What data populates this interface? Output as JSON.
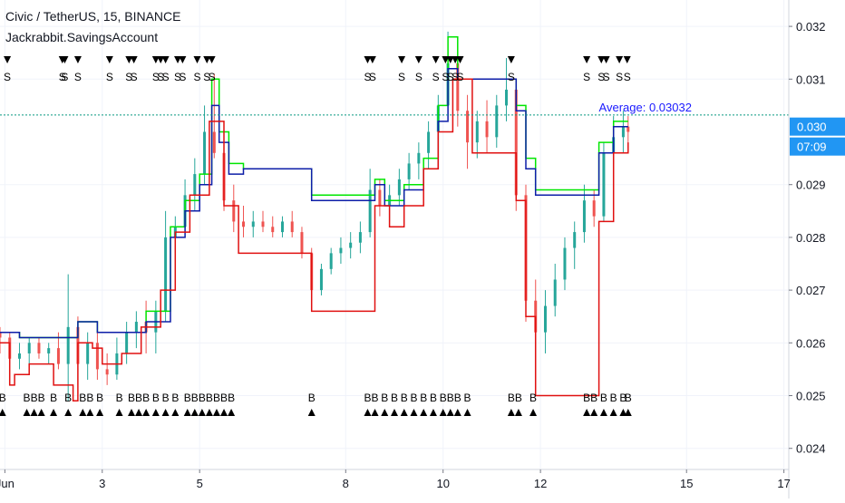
{
  "header": {
    "symbol_line": "Civic / TetherUS, 15, BINANCE",
    "indicator_line": "Jackrabbit.SavingsAccount"
  },
  "price_badge": {
    "value": "0.030",
    "countdown": "07:09",
    "color": "#2196f3"
  },
  "average_label": "Average: 0.03032",
  "colors": {
    "green": "#00e600",
    "blue": "#0d1ea8",
    "red": "#e01010",
    "candle_up": "#26a69a",
    "candle_down": "#ef5350",
    "average_line": "#089981",
    "average_text": "#1a1aff",
    "marker": "#000000"
  },
  "chart_data": {
    "type": "line",
    "title": "Civic / TetherUS, 15, BINANCE",
    "ylim": [
      0.0236,
      0.0325
    ],
    "xlim": [
      0.9,
      17.1
    ],
    "x_ticks": [
      {
        "v": 1,
        "label": "Jun"
      },
      {
        "v": 3,
        "label": "3"
      },
      {
        "v": 5,
        "label": "5"
      },
      {
        "v": 8,
        "label": "8"
      },
      {
        "v": 10,
        "label": "10"
      },
      {
        "v": 12,
        "label": "12"
      },
      {
        "v": 15,
        "label": "15"
      },
      {
        "v": 17,
        "label": "17"
      }
    ],
    "y_ticks": [
      {
        "v": 0.024,
        "label": "0.024"
      },
      {
        "v": 0.025,
        "label": "0.025"
      },
      {
        "v": 0.026,
        "label": "0.026"
      },
      {
        "v": 0.027,
        "label": "0.027"
      },
      {
        "v": 0.028,
        "label": "0.028"
      },
      {
        "v": 0.029,
        "label": "0.029"
      },
      {
        "v": 0.031,
        "label": "0.031"
      },
      {
        "v": 0.032,
        "label": "0.032"
      }
    ],
    "average_level": 0.03032,
    "series": [
      {
        "key": "green",
        "points": [
          [
            0.9,
            0.0262
          ],
          [
            1.2,
            0.0262
          ],
          [
            1.3,
            0.0261
          ],
          [
            2.2,
            0.0261
          ],
          [
            2.5,
            0.0264
          ],
          [
            2.9,
            0.0262
          ],
          [
            3.4,
            0.0262
          ],
          [
            3.9,
            0.0266
          ],
          [
            4.4,
            0.0282
          ],
          [
            4.7,
            0.0287
          ],
          [
            5.0,
            0.0292
          ],
          [
            5.25,
            0.031
          ],
          [
            5.4,
            0.03
          ],
          [
            5.6,
            0.0294
          ],
          [
            5.9,
            0.0293
          ],
          [
            6.9,
            0.0293
          ],
          [
            7.3,
            0.0288
          ],
          [
            8.4,
            0.0288
          ],
          [
            8.6,
            0.0291
          ],
          [
            8.8,
            0.0287
          ],
          [
            9.2,
            0.029
          ],
          [
            9.6,
            0.0295
          ],
          [
            9.9,
            0.0305
          ],
          [
            10.1,
            0.0318
          ],
          [
            10.3,
            0.031
          ],
          [
            11.2,
            0.031
          ],
          [
            11.5,
            0.0305
          ],
          [
            11.7,
            0.0295
          ],
          [
            11.9,
            0.0289
          ],
          [
            12.9,
            0.0289
          ],
          [
            13.2,
            0.0298
          ],
          [
            13.5,
            0.0302
          ],
          [
            13.8,
            0.0302
          ]
        ]
      },
      {
        "key": "blue",
        "points": [
          [
            0.9,
            0.0262
          ],
          [
            1.2,
            0.0262
          ],
          [
            1.3,
            0.0261
          ],
          [
            2.2,
            0.0261
          ],
          [
            2.5,
            0.0264
          ],
          [
            2.9,
            0.0262
          ],
          [
            3.4,
            0.0262
          ],
          [
            3.9,
            0.0264
          ],
          [
            4.4,
            0.028
          ],
          [
            4.7,
            0.0285
          ],
          [
            5.0,
            0.029
          ],
          [
            5.25,
            0.0305
          ],
          [
            5.4,
            0.0298
          ],
          [
            5.6,
            0.0292
          ],
          [
            5.9,
            0.0293
          ],
          [
            6.9,
            0.0293
          ],
          [
            7.3,
            0.0287
          ],
          [
            8.4,
            0.0287
          ],
          [
            8.6,
            0.029
          ],
          [
            8.8,
            0.0286
          ],
          [
            9.2,
            0.0289
          ],
          [
            9.6,
            0.0293
          ],
          [
            9.9,
            0.0302
          ],
          [
            10.1,
            0.0312
          ],
          [
            10.3,
            0.031
          ],
          [
            11.2,
            0.031
          ],
          [
            11.5,
            0.0304
          ],
          [
            11.7,
            0.0293
          ],
          [
            11.9,
            0.0288
          ],
          [
            12.9,
            0.0288
          ],
          [
            13.2,
            0.0296
          ],
          [
            13.5,
            0.0301
          ],
          [
            13.8,
            0.0301
          ]
        ]
      },
      {
        "key": "red",
        "points": [
          [
            0.9,
            0.026
          ],
          [
            1.1,
            0.0252
          ],
          [
            1.2,
            0.0254
          ],
          [
            1.5,
            0.0256
          ],
          [
            2.0,
            0.0252
          ],
          [
            2.4,
            0.0249
          ],
          [
            2.5,
            0.026
          ],
          [
            2.8,
            0.0259
          ],
          [
            3.0,
            0.0256
          ],
          [
            3.4,
            0.0258
          ],
          [
            3.8,
            0.0263
          ],
          [
            4.2,
            0.027
          ],
          [
            4.5,
            0.0281
          ],
          [
            4.8,
            0.0288
          ],
          [
            5.2,
            0.0302
          ],
          [
            5.5,
            0.0286
          ],
          [
            5.8,
            0.0277
          ],
          [
            6.9,
            0.0277
          ],
          [
            7.3,
            0.0266
          ],
          [
            8.4,
            0.0266
          ],
          [
            8.6,
            0.0286
          ],
          [
            8.9,
            0.0282
          ],
          [
            9.2,
            0.0286
          ],
          [
            9.6,
            0.0293
          ],
          [
            9.9,
            0.03
          ],
          [
            10.2,
            0.031
          ],
          [
            10.6,
            0.0296
          ],
          [
            11.2,
            0.0296
          ],
          [
            11.5,
            0.0287
          ],
          [
            11.7,
            0.0265
          ],
          [
            11.9,
            0.025
          ],
          [
            12.9,
            0.025
          ],
          [
            13.2,
            0.0283
          ],
          [
            13.5,
            0.0296
          ],
          [
            13.8,
            0.0298
          ]
        ]
      }
    ],
    "candles": [
      [
        0.9,
        0.0262,
        0.0263,
        0.0258,
        0.0261
      ],
      [
        1.1,
        0.0261,
        0.0262,
        0.0256,
        0.0257
      ],
      [
        1.3,
        0.0257,
        0.026,
        0.0255,
        0.0258
      ],
      [
        1.5,
        0.0258,
        0.0261,
        0.0256,
        0.026
      ],
      [
        1.7,
        0.026,
        0.0261,
        0.0257,
        0.0258
      ],
      [
        1.9,
        0.0258,
        0.026,
        0.0256,
        0.0259
      ],
      [
        2.1,
        0.0259,
        0.0262,
        0.0255,
        0.0256
      ],
      [
        2.3,
        0.0256,
        0.0273,
        0.0249,
        0.0263
      ],
      [
        2.5,
        0.0263,
        0.0265,
        0.0252,
        0.0256
      ],
      [
        2.7,
        0.0256,
        0.0262,
        0.0253,
        0.026
      ],
      [
        2.9,
        0.026,
        0.0262,
        0.0253,
        0.0255
      ],
      [
        3.1,
        0.0255,
        0.0258,
        0.0252,
        0.0254
      ],
      [
        3.3,
        0.0254,
        0.0261,
        0.0253,
        0.0258
      ],
      [
        3.5,
        0.0258,
        0.0264,
        0.0256,
        0.0262
      ],
      [
        3.7,
        0.0262,
        0.0266,
        0.0259,
        0.0264
      ],
      [
        3.9,
        0.0264,
        0.0268,
        0.0258,
        0.0262
      ],
      [
        4.1,
        0.0262,
        0.0268,
        0.0258,
        0.0266
      ],
      [
        4.3,
        0.0266,
        0.0285,
        0.0264,
        0.028
      ],
      [
        4.5,
        0.028,
        0.0284,
        0.0277,
        0.0282
      ],
      [
        4.7,
        0.0282,
        0.0291,
        0.028,
        0.0288
      ],
      [
        4.9,
        0.0288,
        0.0295,
        0.0285,
        0.0292
      ],
      [
        5.1,
        0.0292,
        0.0305,
        0.029,
        0.03
      ],
      [
        5.3,
        0.03,
        0.0311,
        0.0295,
        0.0296
      ],
      [
        5.5,
        0.0296,
        0.0298,
        0.0285,
        0.0287
      ],
      [
        5.7,
        0.0287,
        0.029,
        0.0281,
        0.0283
      ],
      [
        5.9,
        0.0283,
        0.0286,
        0.028,
        0.0282
      ],
      [
        6.1,
        0.0282,
        0.0285,
        0.028,
        0.0283
      ],
      [
        6.3,
        0.0283,
        0.0285,
        0.0281,
        0.0282
      ],
      [
        6.5,
        0.0282,
        0.0284,
        0.028,
        0.0281
      ],
      [
        6.7,
        0.0281,
        0.0284,
        0.028,
        0.0283
      ],
      [
        6.9,
        0.0283,
        0.0285,
        0.028,
        0.0281
      ],
      [
        7.1,
        0.0281,
        0.0282,
        0.0276,
        0.0277
      ],
      [
        7.3,
        0.0277,
        0.0278,
        0.0268,
        0.027
      ],
      [
        7.5,
        0.027,
        0.0275,
        0.0269,
        0.0274
      ],
      [
        7.7,
        0.0274,
        0.0278,
        0.0273,
        0.0277
      ],
      [
        7.9,
        0.0277,
        0.028,
        0.0275,
        0.0278
      ],
      [
        8.1,
        0.0278,
        0.0281,
        0.0276,
        0.0279
      ],
      [
        8.3,
        0.0279,
        0.0283,
        0.0277,
        0.0281
      ],
      [
        8.5,
        0.0281,
        0.0293,
        0.028,
        0.0289
      ],
      [
        8.7,
        0.0289,
        0.0291,
        0.0284,
        0.0286
      ],
      [
        8.9,
        0.0286,
        0.029,
        0.0283,
        0.0288
      ],
      [
        9.1,
        0.0288,
        0.0293,
        0.0286,
        0.0291
      ],
      [
        9.3,
        0.0291,
        0.0296,
        0.0289,
        0.0294
      ],
      [
        9.5,
        0.0294,
        0.0298,
        0.0291,
        0.0296
      ],
      [
        9.7,
        0.0296,
        0.0302,
        0.0293,
        0.03
      ],
      [
        9.9,
        0.03,
        0.0307,
        0.0297,
        0.0305
      ],
      [
        10.1,
        0.0305,
        0.0319,
        0.0303,
        0.0313
      ],
      [
        10.3,
        0.0313,
        0.0317,
        0.0301,
        0.0304
      ],
      [
        10.5,
        0.0304,
        0.0307,
        0.0293,
        0.0298
      ],
      [
        10.7,
        0.0298,
        0.0304,
        0.0295,
        0.0302
      ],
      [
        10.9,
        0.0302,
        0.0306,
        0.0296,
        0.0299
      ],
      [
        11.1,
        0.0299,
        0.0307,
        0.0297,
        0.0305
      ],
      [
        11.3,
        0.0305,
        0.0314,
        0.0302,
        0.0308
      ],
      [
        11.5,
        0.0308,
        0.0309,
        0.0285,
        0.0288
      ],
      [
        11.7,
        0.0288,
        0.029,
        0.0264,
        0.0268
      ],
      [
        11.9,
        0.0268,
        0.0272,
        0.0251,
        0.0262
      ],
      [
        12.1,
        0.0262,
        0.027,
        0.0258,
        0.0267
      ],
      [
        12.3,
        0.0267,
        0.0275,
        0.0265,
        0.0272
      ],
      [
        12.5,
        0.0272,
        0.028,
        0.027,
        0.0278
      ],
      [
        12.7,
        0.0278,
        0.0283,
        0.0274,
        0.0281
      ],
      [
        12.9,
        0.0281,
        0.029,
        0.0279,
        0.0287
      ],
      [
        13.1,
        0.0287,
        0.0289,
        0.0282,
        0.0284
      ],
      [
        13.3,
        0.0284,
        0.0298,
        0.0283,
        0.0296
      ],
      [
        13.5,
        0.0296,
        0.0303,
        0.0294,
        0.0299
      ],
      [
        13.7,
        0.0299,
        0.0304,
        0.0296,
        0.0301
      ],
      [
        13.8,
        0.0301,
        0.0303,
        0.0297,
        0.03
      ]
    ],
    "sell_markers": [
      {
        "x": 1.05,
        "label": "S"
      },
      {
        "x": 2.18,
        "label": "S"
      },
      {
        "x": 2.23,
        "label": "S"
      },
      {
        "x": 2.5,
        "label": "S"
      },
      {
        "x": 3.15,
        "label": "S"
      },
      {
        "x": 3.55,
        "label": "S"
      },
      {
        "x": 3.65,
        "label": "S"
      },
      {
        "x": 4.1,
        "label": "S"
      },
      {
        "x": 4.2,
        "label": "S"
      },
      {
        "x": 4.3,
        "label": "S"
      },
      {
        "x": 4.55,
        "label": "S"
      },
      {
        "x": 4.65,
        "label": "S"
      },
      {
        "x": 4.95,
        "label": "S"
      },
      {
        "x": 5.15,
        "label": "S"
      },
      {
        "x": 5.25,
        "label": "S"
      },
      {
        "x": 8.45,
        "label": "S"
      },
      {
        "x": 8.55,
        "label": "S"
      },
      {
        "x": 9.15,
        "label": "S"
      },
      {
        "x": 9.5,
        "label": "S"
      },
      {
        "x": 9.85,
        "label": "S"
      },
      {
        "x": 10.05,
        "label": "S"
      },
      {
        "x": 10.15,
        "label": "S"
      },
      {
        "x": 10.25,
        "label": "S"
      },
      {
        "x": 10.35,
        "label": "S"
      },
      {
        "x": 11.4,
        "label": "S"
      },
      {
        "x": 12.95,
        "label": "S"
      },
      {
        "x": 13.25,
        "label": "S"
      },
      {
        "x": 13.35,
        "label": "S"
      },
      {
        "x": 13.62,
        "label": "S"
      },
      {
        "x": 13.78,
        "label": "S"
      }
    ],
    "buy_markers": [
      {
        "x": 0.95,
        "label": "B"
      },
      {
        "x": 1.45,
        "label": "B"
      },
      {
        "x": 1.6,
        "label": "B"
      },
      {
        "x": 1.75,
        "label": "B"
      },
      {
        "x": 2.0,
        "label": "B"
      },
      {
        "x": 2.3,
        "label": "B"
      },
      {
        "x": 2.6,
        "label": "B"
      },
      {
        "x": 2.75,
        "label": "B"
      },
      {
        "x": 2.95,
        "label": "B"
      },
      {
        "x": 3.35,
        "label": "B"
      },
      {
        "x": 3.6,
        "label": "B"
      },
      {
        "x": 3.75,
        "label": "B"
      },
      {
        "x": 3.9,
        "label": "B"
      },
      {
        "x": 4.1,
        "label": "B"
      },
      {
        "x": 4.3,
        "label": "B"
      },
      {
        "x": 4.5,
        "label": "B"
      },
      {
        "x": 4.75,
        "label": "B"
      },
      {
        "x": 4.9,
        "label": "B"
      },
      {
        "x": 5.05,
        "label": "B"
      },
      {
        "x": 5.2,
        "label": "B"
      },
      {
        "x": 5.35,
        "label": "B"
      },
      {
        "x": 5.5,
        "label": "B"
      },
      {
        "x": 5.65,
        "label": "B"
      },
      {
        "x": 7.3,
        "label": "B"
      },
      {
        "x": 8.45,
        "label": "B"
      },
      {
        "x": 8.6,
        "label": "B"
      },
      {
        "x": 8.8,
        "label": "B"
      },
      {
        "x": 9.0,
        "label": "B"
      },
      {
        "x": 9.2,
        "label": "B"
      },
      {
        "x": 9.4,
        "label": "B"
      },
      {
        "x": 9.6,
        "label": "B"
      },
      {
        "x": 9.8,
        "label": "B"
      },
      {
        "x": 10.0,
        "label": "B"
      },
      {
        "x": 10.15,
        "label": "B"
      },
      {
        "x": 10.3,
        "label": "B"
      },
      {
        "x": 10.5,
        "label": "B"
      },
      {
        "x": 11.4,
        "label": "B"
      },
      {
        "x": 11.55,
        "label": "B"
      },
      {
        "x": 11.85,
        "label": "B"
      },
      {
        "x": 12.95,
        "label": "B"
      },
      {
        "x": 13.1,
        "label": "B"
      },
      {
        "x": 13.3,
        "label": "B"
      },
      {
        "x": 13.5,
        "label": "B"
      },
      {
        "x": 13.7,
        "label": "B"
      },
      {
        "x": 13.8,
        "label": "B"
      }
    ]
  }
}
